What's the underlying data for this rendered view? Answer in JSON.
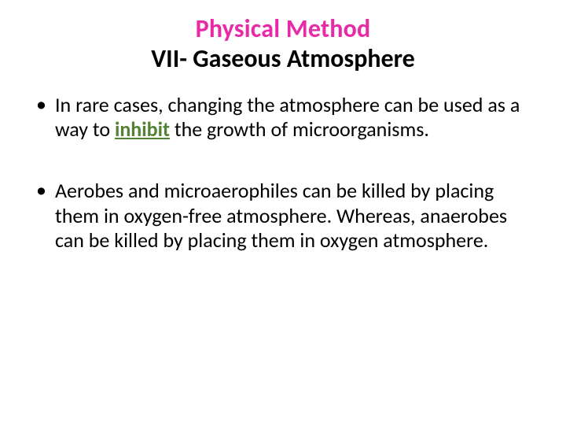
{
  "title": {
    "line1": "Physical Method",
    "line2": "VII-   Gaseous Atmosphere",
    "line1_color": "#e82aa7",
    "line2_color": "#000000",
    "fontsize": 32,
    "font_weight": 700,
    "line_height": 1.18
  },
  "bullets": [
    {
      "pre": "In rare cases, changing the atmosphere can be used as a way to ",
      "emph": "inhibit",
      "post": " the growth of microorganisms.",
      "emph_color": "#548235"
    },
    {
      "pre": "Aerobes and microaerophiles can be killed by placing them in oxygen-free atmosphere. Whereas, anaerobes can be killed by placing them in oxygen atmosphere.",
      "emph": "",
      "post": ""
    }
  ],
  "body": {
    "fontsize": 26,
    "line_height": 1.22,
    "color": "#000000"
  },
  "background_color": "#ffffff"
}
